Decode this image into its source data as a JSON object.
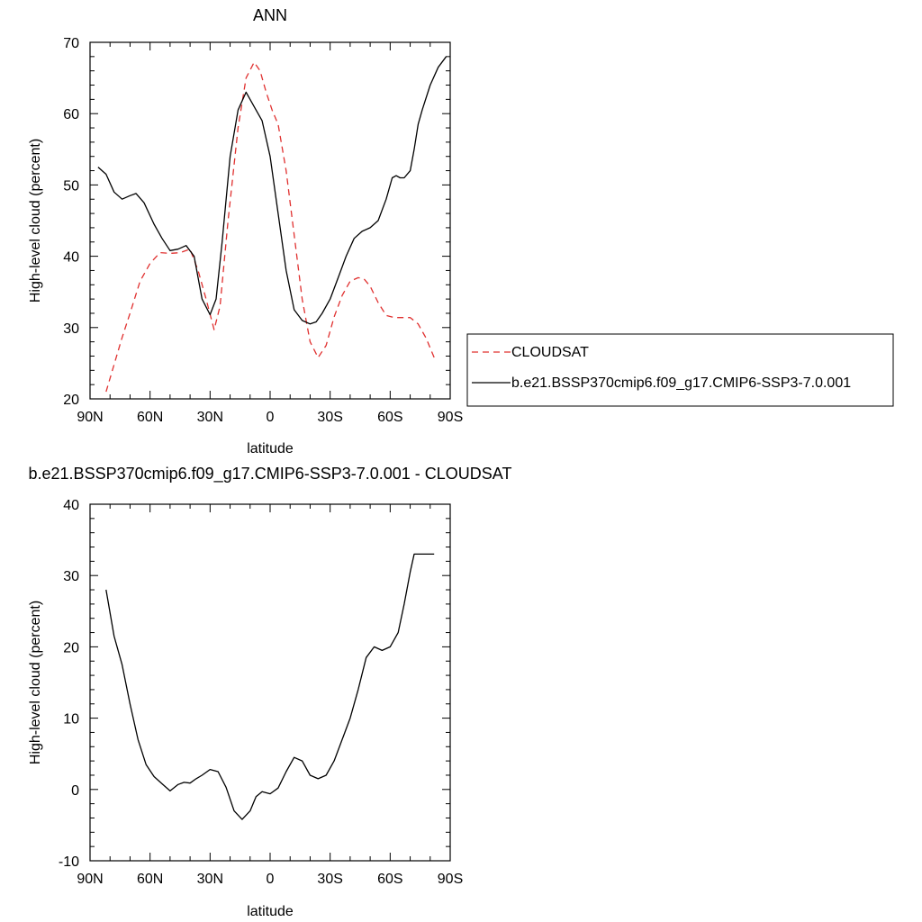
{
  "colors": {
    "obs": "#e0302f",
    "model": "#000000",
    "axis": "#000000"
  },
  "chart_data": [
    {
      "type": "line",
      "title": "ANN",
      "xlabel": "latitude",
      "ylabel": "High-level cloud (percent)",
      "xlim": [
        90,
        -90
      ],
      "ylim": [
        20,
        70
      ],
      "xticks": [
        {
          "value": 90,
          "label": "90N"
        },
        {
          "value": 60,
          "label": "60N"
        },
        {
          "value": 30,
          "label": "30N"
        },
        {
          "value": 0,
          "label": "0"
        },
        {
          "value": -30,
          "label": "30S"
        },
        {
          "value": -60,
          "label": "60S"
        },
        {
          "value": -90,
          "label": "90S"
        }
      ],
      "yticks": [
        20,
        30,
        40,
        50,
        60,
        70
      ],
      "legend": {
        "placement": "right",
        "entries": [
          "CLOUDSAT",
          "b.e21.BSSP370cmip6.f09_g17.CMIP6-SSP3-7.0.001"
        ]
      },
      "series": [
        {
          "name": "CLOUDSAT",
          "style": "dashed",
          "x": [
            82,
            78,
            74,
            70,
            65,
            60,
            55,
            50,
            45,
            40,
            36,
            32,
            28,
            25,
            21,
            16,
            12,
            8,
            5,
            2,
            -1,
            -4,
            -8,
            -12,
            -16,
            -20,
            -24,
            -28,
            -32,
            -36,
            -40,
            -44,
            -47,
            -50,
            -54,
            -58,
            -62,
            -66,
            -70,
            -74,
            -78,
            -82
          ],
          "values": [
            21.0,
            24.8,
            28.6,
            32.0,
            36.5,
            39.0,
            40.5,
            40.4,
            40.5,
            41.0,
            38.0,
            34.0,
            29.7,
            33.0,
            45.0,
            58.0,
            65.0,
            67.2,
            66.0,
            63.0,
            60.5,
            58.5,
            52.0,
            43.0,
            34.0,
            28.0,
            25.8,
            27.5,
            31.5,
            34.5,
            36.5,
            37.0,
            36.8,
            35.8,
            33.5,
            31.7,
            31.4,
            31.4,
            31.4,
            30.5,
            28.5,
            25.8
          ]
        },
        {
          "name": "b.e21.BSSP370cmip6.f09_g17.CMIP6-SSP3-7.0.001",
          "style": "solid",
          "x": [
            86,
            82,
            78,
            74,
            70,
            67,
            63,
            58,
            54,
            50,
            46,
            42,
            38,
            34,
            30,
            27,
            24,
            20,
            16,
            12,
            8,
            4,
            0,
            -4,
            -8,
            -12,
            -16,
            -20,
            -23,
            -26,
            -30,
            -34,
            -38,
            -42,
            -46,
            -50,
            -54,
            -58,
            -61,
            -63,
            -65,
            -67,
            -70,
            -72,
            -74,
            -76,
            -80,
            -84,
            -88
          ],
          "values": [
            52.5,
            51.5,
            49.0,
            48.0,
            48.5,
            48.8,
            47.5,
            44.5,
            42.5,
            40.8,
            41.0,
            41.5,
            40.0,
            34.0,
            31.8,
            34.0,
            42.0,
            54.0,
            60.5,
            63.0,
            61.0,
            59.0,
            54.0,
            46.0,
            38.0,
            32.5,
            31.0,
            30.5,
            30.8,
            32.0,
            34.0,
            37.0,
            40.0,
            42.5,
            43.5,
            44.0,
            45.0,
            48.0,
            51.0,
            51.3,
            51.0,
            51.0,
            52.0,
            55.0,
            58.5,
            60.5,
            64.0,
            66.5,
            68.0
          ]
        }
      ]
    },
    {
      "type": "line",
      "title": "b.e21.BSSP370cmip6.f09_g17.CMIP6-SSP3-7.0.001 - CLOUDSAT",
      "xlabel": "latitude",
      "ylabel": "High-level cloud (percent)",
      "xlim": [
        90,
        -90
      ],
      "ylim": [
        -10,
        40
      ],
      "xticks": [
        {
          "value": 90,
          "label": "90N"
        },
        {
          "value": 60,
          "label": "60N"
        },
        {
          "value": 30,
          "label": "30N"
        },
        {
          "value": 0,
          "label": "0"
        },
        {
          "value": -30,
          "label": "30S"
        },
        {
          "value": -60,
          "label": "60S"
        },
        {
          "value": -90,
          "label": "90S"
        }
      ],
      "yticks": [
        -10,
        0,
        10,
        20,
        30,
        40
      ],
      "series": [
        {
          "style": "solid",
          "x": [
            82,
            78,
            74,
            70,
            66,
            62,
            58,
            54,
            50,
            46,
            43,
            40,
            37,
            34,
            30,
            26,
            22,
            18,
            14,
            10,
            7,
            4,
            0,
            -4,
            -8,
            -12,
            -16,
            -20,
            -24,
            -28,
            -32,
            -36,
            -40,
            -44,
            -48,
            -52,
            -56,
            -60,
            -64,
            -67,
            -70,
            -72,
            -74,
            -76,
            -78,
            -80,
            -82
          ],
          "values": [
            28.0,
            21.5,
            17.5,
            12.0,
            7.0,
            3.5,
            1.8,
            0.8,
            -0.2,
            0.7,
            1.0,
            0.9,
            1.5,
            2.0,
            2.8,
            2.5,
            0.3,
            -3.0,
            -4.2,
            -3.0,
            -1.0,
            -0.3,
            -0.6,
            0.2,
            2.5,
            4.5,
            4.0,
            2.0,
            1.5,
            2.0,
            4.0,
            7.0,
            10.0,
            14.0,
            18.5,
            20.0,
            19.5,
            20.0,
            22.0,
            26.0,
            30.5,
            33.0,
            33.0,
            33.0,
            33.0,
            33.0,
            33.0
          ]
        }
      ]
    }
  ]
}
